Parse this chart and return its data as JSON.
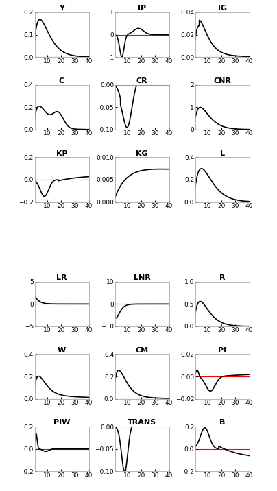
{
  "panels": [
    {
      "title": "Y",
      "ylim": [
        0,
        0.2
      ],
      "yticks": [
        0,
        0.1,
        0.2
      ],
      "shape": "Y"
    },
    {
      "title": "IP",
      "ylim": [
        -1,
        1
      ],
      "yticks": [
        -1,
        0,
        1
      ],
      "shape": "IP"
    },
    {
      "title": "IG",
      "ylim": [
        0,
        0.04
      ],
      "yticks": [
        0,
        0.02,
        0.04
      ],
      "shape": "IG"
    },
    {
      "title": "C",
      "ylim": [
        0,
        0.4
      ],
      "yticks": [
        0,
        0.2,
        0.4
      ],
      "shape": "C"
    },
    {
      "title": "CR",
      "ylim": [
        -0.1,
        0
      ],
      "yticks": [
        -0.1,
        -0.05,
        0
      ],
      "shape": "CR"
    },
    {
      "title": "CNR",
      "ylim": [
        0,
        2
      ],
      "yticks": [
        0,
        1,
        2
      ],
      "shape": "CNR"
    },
    {
      "title": "KP",
      "ylim": [
        -0.2,
        0.2
      ],
      "yticks": [
        -0.2,
        0,
        0.2
      ],
      "shape": "KP"
    },
    {
      "title": "KG",
      "ylim": [
        0,
        0.01
      ],
      "yticks": [
        0,
        0.005,
        0.01
      ],
      "shape": "KG"
    },
    {
      "title": "L",
      "ylim": [
        0,
        0.4
      ],
      "yticks": [
        0,
        0.2,
        0.4
      ],
      "shape": "L"
    },
    {
      "title": "LR",
      "ylim": [
        -5,
        5
      ],
      "yticks": [
        -5,
        0,
        5
      ],
      "shape": "LR"
    },
    {
      "title": "LNR",
      "ylim": [
        -10,
        10
      ],
      "yticks": [
        -10,
        0,
        10
      ],
      "shape": "LNR"
    },
    {
      "title": "R",
      "ylim": [
        0,
        1
      ],
      "yticks": [
        0,
        0.5,
        1
      ],
      "shape": "R"
    },
    {
      "title": "W",
      "ylim": [
        0,
        0.4
      ],
      "yticks": [
        0,
        0.2,
        0.4
      ],
      "shape": "W"
    },
    {
      "title": "CM",
      "ylim": [
        0,
        0.4
      ],
      "yticks": [
        0,
        0.2,
        0.4
      ],
      "shape": "CM"
    },
    {
      "title": "PI",
      "ylim": [
        -0.02,
        0.02
      ],
      "yticks": [
        -0.02,
        0,
        0.02
      ],
      "shape": "PI"
    },
    {
      "title": "PIW",
      "ylim": [
        -0.2,
        0.2
      ],
      "yticks": [
        -0.2,
        0,
        0.2
      ],
      "shape": "PIW"
    },
    {
      "title": "TRANS",
      "ylim": [
        -0.1,
        0
      ],
      "yticks": [
        -0.1,
        -0.05,
        0
      ],
      "shape": "TRANS"
    },
    {
      "title": "B",
      "ylim": [
        -0.2,
        0.2
      ],
      "yticks": [
        -0.2,
        0,
        0.2
      ],
      "shape": "B"
    }
  ],
  "xmin": 1,
  "xmax": 40,
  "xticks": [
    10,
    20,
    30,
    40
  ],
  "line_color": "#000000",
  "zero_line_color": "#ff0000",
  "background_color": "#ffffff",
  "title_fontsize": 8,
  "tick_fontsize": 6.5,
  "linewidth": 1.2,
  "zero_linewidth": 0.8
}
